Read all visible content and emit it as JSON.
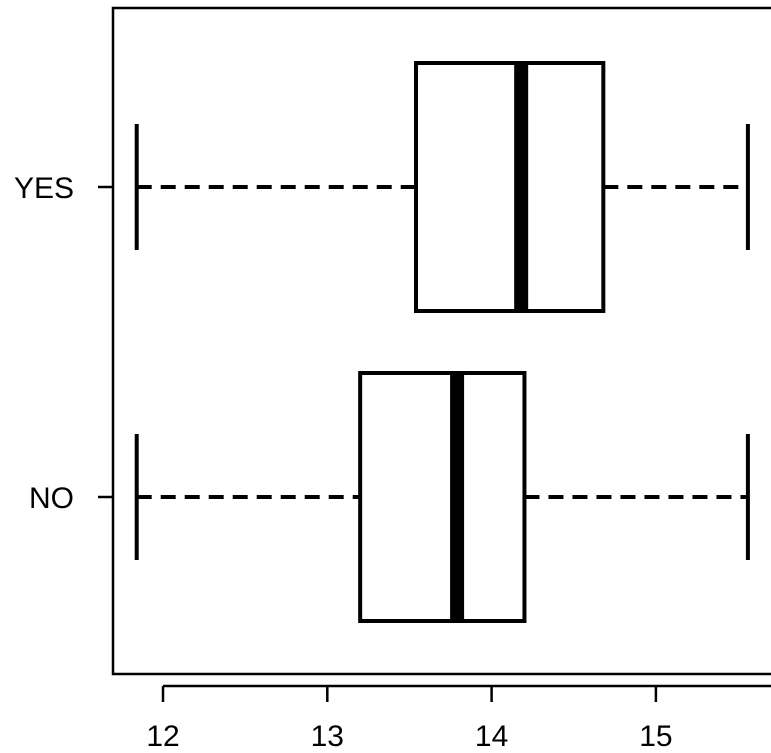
{
  "chart_data": {
    "type": "boxplot",
    "orientation": "horizontal",
    "title": "",
    "xlabel": "",
    "ylabel": "",
    "xlim": [
      11.7,
      15.7
    ],
    "x_ticks": [
      12,
      13,
      14,
      15
    ],
    "x_tick_labels": [
      "12",
      "13",
      "14",
      "15"
    ],
    "grid": false,
    "legend": "none",
    "categories": [
      "NO",
      "YES"
    ],
    "boxes": [
      {
        "category": "NO",
        "whisker_low": 11.84,
        "q1": 13.2,
        "median": 13.79,
        "q3": 14.2,
        "whisker_high": 15.56
      },
      {
        "category": "YES",
        "whisker_low": 11.84,
        "q1": 13.54,
        "median": 14.18,
        "q3": 14.68,
        "whisker_high": 15.56
      }
    ],
    "colors": {
      "stroke": "#000000",
      "fill": "#ffffff"
    }
  }
}
